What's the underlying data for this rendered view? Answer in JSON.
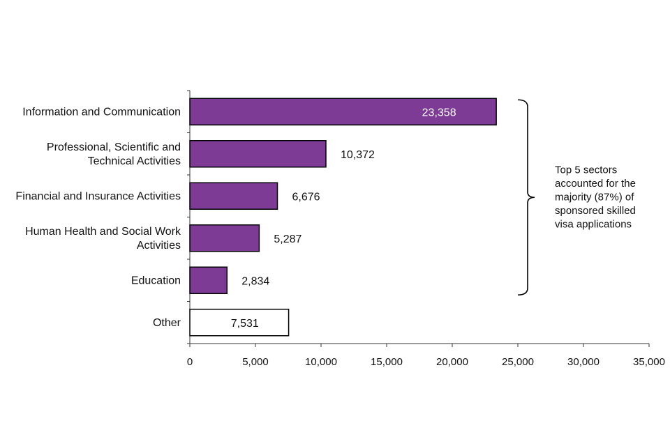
{
  "chart_data": {
    "type": "bar",
    "orientation": "horizontal",
    "title": "",
    "xlabel": "",
    "ylabel": "",
    "xlim": [
      0,
      35000
    ],
    "xticks": [
      0,
      5000,
      10000,
      15000,
      20000,
      25000,
      30000,
      35000
    ],
    "xtick_labels": [
      "0",
      "5,000",
      "10,000",
      "15,000",
      "20,000",
      "25,000",
      "30,000",
      "35,000"
    ],
    "grid": false,
    "categories": [
      [
        "Information and Communication"
      ],
      [
        "Professional, Scientific and",
        "Technical Activities"
      ],
      [
        "Financial and Insurance Activities"
      ],
      [
        "Human Health and Social Work",
        "Activities"
      ],
      [
        "Education"
      ],
      [
        "Other"
      ]
    ],
    "values": [
      23358,
      10372,
      6676,
      5287,
      2834,
      7531
    ],
    "value_labels": [
      "23,358",
      "10,372",
      "6,676",
      "5,287",
      "2,834",
      "7,531"
    ],
    "bar_styles": [
      "filled",
      "filled",
      "filled",
      "filled",
      "filled",
      "outline"
    ],
    "label_positions": [
      "inside",
      "outside",
      "outside",
      "outside",
      "outside",
      "inside"
    ],
    "colors": {
      "bar_fill": "#7d3b96",
      "bar_stroke": "#000000",
      "outline_fill": "#ffffff",
      "axis": "#333333"
    },
    "annotation": {
      "spans_categories": [
        0,
        4
      ],
      "lines": [
        "Top 5 sectors",
        "accounted for the",
        "majority (87%) of",
        "sponsored skilled",
        "visa applications"
      ]
    }
  }
}
